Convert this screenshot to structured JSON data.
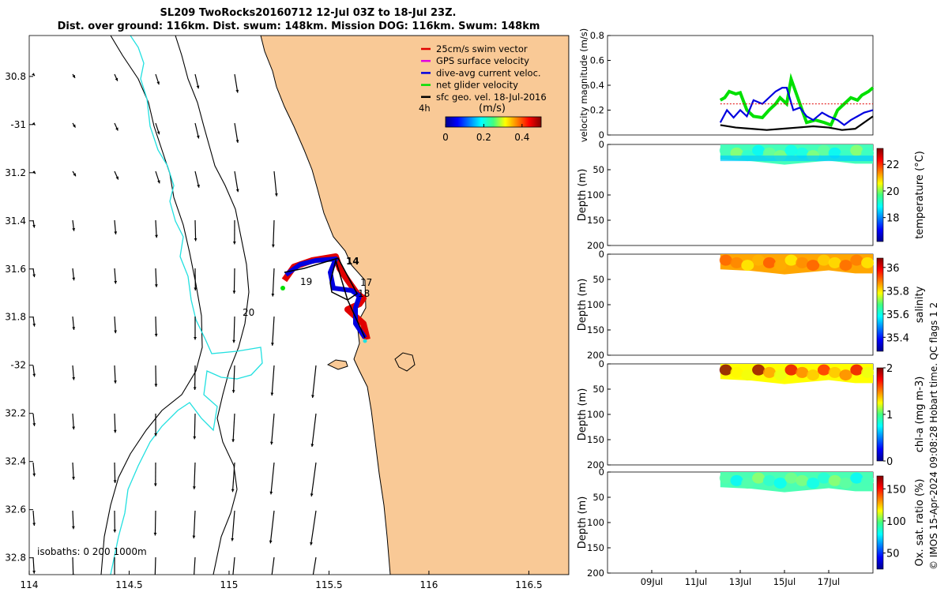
{
  "title_line1": "SL209 TwoRocks20160712 12-Jul 03Z to 18-Jul 23Z.",
  "title_line2": "Dist. over ground: 116km. Dist. swum: 148km. Mission DOG: 116km. Swum: 148km",
  "legend": [
    {
      "label": "25cm/s swim vector",
      "color": "#e00000"
    },
    {
      "label": "GPS surface velocity",
      "color": "#e000e0"
    },
    {
      "label": "dive-avg current veloc.",
      "color": "#0000e0"
    },
    {
      "label": "net glider velocity",
      "color": "#00e000"
    },
    {
      "label": "sfc geo. vel. 18-Jul-2016",
      "color": "#000000"
    }
  ],
  "legend_extra_label": "4h",
  "colorbar_title": "(m/s)",
  "isobath_label": "isobaths: 0   200  1000m",
  "day_labels": [
    "14",
    "17",
    "18",
    "19",
    "20"
  ],
  "colors": {
    "land": "#f9c996",
    "accent_green": "#00e000",
    "path_blue": "#0000e0",
    "path_red": "#e00000",
    "isobath_cyan": "#22e0e0"
  },
  "chart_data": [
    {
      "type": "scatter",
      "name": "map",
      "xlim": [
        114,
        116.7
      ],
      "ylim": [
        -32.87,
        -30.63
      ],
      "xticks": [
        114,
        114.5,
        115,
        115.5,
        116,
        116.5
      ],
      "xtick_labels": [
        "114",
        "114.5",
        "115",
        "115.5",
        "116",
        "116.5"
      ],
      "yticks": [
        -30.8,
        -31,
        -31.2,
        -31.4,
        -31.6,
        -31.8,
        -32,
        -32.2,
        -32.4,
        -32.6,
        -32.8
      ],
      "ytick_labels": [
        "30.8",
        "-31",
        "31.2",
        "31.4",
        "31.6",
        "31.8",
        "-32",
        "32.2",
        "32.4",
        "32.6",
        "32.8"
      ],
      "colorbar": {
        "range": [
          0,
          0.5
        ],
        "ticks": [
          0,
          0.2,
          0.4
        ],
        "tick_labels": [
          "0",
          "0.2",
          "0.4"
        ],
        "title": "(m/s)"
      }
    },
    {
      "type": "line",
      "name": "velocity",
      "ylabel": "velocity magnitude (m/s)",
      "ylim": [
        0,
        0.8
      ],
      "yticks": [
        0,
        0.2,
        0.4,
        0.6,
        0.8
      ],
      "ytick_labels": [
        "0",
        "0.2",
        "0.4",
        "0.6",
        "0.8"
      ],
      "xlim": [
        7,
        19
      ],
      "series": [
        {
          "name": "net glider velocity",
          "color": "#00e000",
          "x": [
            12.1,
            12.3,
            12.5,
            12.8,
            13.0,
            13.3,
            13.6,
            14.0,
            14.3,
            14.6,
            14.8,
            15.1,
            15.3,
            15.6,
            16.0,
            16.4,
            16.8,
            17.1,
            17.4,
            17.7,
            18.0,
            18.3,
            18.5,
            18.8,
            19.0
          ],
          "values": [
            0.28,
            0.3,
            0.35,
            0.33,
            0.34,
            0.2,
            0.15,
            0.14,
            0.2,
            0.25,
            0.3,
            0.25,
            0.45,
            0.3,
            0.1,
            0.12,
            0.1,
            0.08,
            0.2,
            0.25,
            0.3,
            0.28,
            0.32,
            0.35,
            0.38
          ]
        },
        {
          "name": "dive-avg current veloc.",
          "color": "#0000e0",
          "x": [
            12.1,
            12.4,
            12.7,
            13.0,
            13.3,
            13.6,
            14.0,
            14.3,
            14.6,
            14.9,
            15.1,
            15.4,
            15.7,
            16.0,
            16.3,
            16.7,
            17.0,
            17.4,
            17.7,
            18.0,
            18.3,
            18.6,
            19.0
          ],
          "values": [
            0.1,
            0.2,
            0.14,
            0.2,
            0.15,
            0.28,
            0.25,
            0.3,
            0.35,
            0.38,
            0.38,
            0.2,
            0.22,
            0.15,
            0.12,
            0.18,
            0.15,
            0.12,
            0.08,
            0.12,
            0.15,
            0.18,
            0.2
          ]
        },
        {
          "name": "sfc geo. vel.",
          "color": "#000000",
          "x": [
            12.1,
            12.8,
            13.5,
            14.2,
            14.9,
            15.6,
            16.3,
            17.0,
            17.6,
            18.2,
            19.0
          ],
          "values": [
            0.08,
            0.06,
            0.05,
            0.04,
            0.05,
            0.06,
            0.07,
            0.06,
            0.04,
            0.05,
            0.15
          ]
        },
        {
          "name": "swim speed",
          "color": "#e00000",
          "x": [
            12.1,
            19.0
          ],
          "values": [
            0.25,
            0.25
          ]
        }
      ]
    },
    {
      "type": "heatmap",
      "name": "temperature",
      "ylabel": "Depth (m)",
      "ylim": [
        0,
        200
      ],
      "yticks": [
        0,
        50,
        100,
        150,
        200
      ],
      "ytick_labels": [
        "0",
        "50",
        "100",
        "150",
        "200"
      ],
      "cbar_label": "temperature (°C)",
      "cbar_range": [
        16.2,
        23.2
      ],
      "cbar_ticks": [
        18,
        20,
        22
      ],
      "cbar_tick_labels": [
        "18",
        "20",
        "22"
      ],
      "typical_value": 19.3
    },
    {
      "type": "heatmap",
      "name": "salinity",
      "ylabel": "Depth (m)",
      "ylim": [
        0,
        200
      ],
      "yticks": [
        0,
        50,
        100,
        150,
        200
      ],
      "ytick_labels": [
        "0",
        "50",
        "100",
        "150",
        "200"
      ],
      "cbar_label": "salinity",
      "cbar_range": [
        35.28,
        36.08
      ],
      "cbar_ticks": [
        35.4,
        35.6,
        35.8,
        36
      ],
      "cbar_tick_labels": [
        "35.4",
        "35.6",
        "35.8",
        "36"
      ],
      "typical_value": 35.85
    },
    {
      "type": "heatmap",
      "name": "chl-a",
      "ylabel": "Depth (m)",
      "ylim": [
        0,
        200
      ],
      "yticks": [
        0,
        50,
        100,
        150,
        200
      ],
      "ytick_labels": [
        "0",
        "50",
        "100",
        "150",
        "200"
      ],
      "cbar_label": "chl-a (mg m-3)",
      "cbar_range": [
        0,
        2
      ],
      "cbar_ticks": [
        0,
        1,
        2
      ],
      "cbar_tick_labels": [
        "0",
        "1",
        "2"
      ],
      "typical_value": 1.25
    },
    {
      "type": "heatmap",
      "name": "oxygen",
      "ylabel": "Depth (m)",
      "ylim": [
        0,
        200
      ],
      "yticks": [
        0,
        50,
        100,
        150,
        200
      ],
      "ytick_labels": [
        "0",
        "50",
        "100",
        "150",
        "200"
      ],
      "cbar_label": "Ox. sat. ratio (%)",
      "cbar_range": [
        25,
        170
      ],
      "cbar_ticks": [
        50,
        100,
        150
      ],
      "cbar_tick_labels": [
        "50",
        "100",
        "150"
      ],
      "typical_value": 90,
      "xticks": [
        9,
        11,
        13,
        15,
        17
      ],
      "xtick_labels": [
        "09Jul",
        "11Jul",
        "13Jul",
        "15Jul",
        "17Jul"
      ]
    }
  ],
  "side_note": "© IMOS 15-Apr-2024 09:08:28 Hobart time. QC flags 1  2"
}
